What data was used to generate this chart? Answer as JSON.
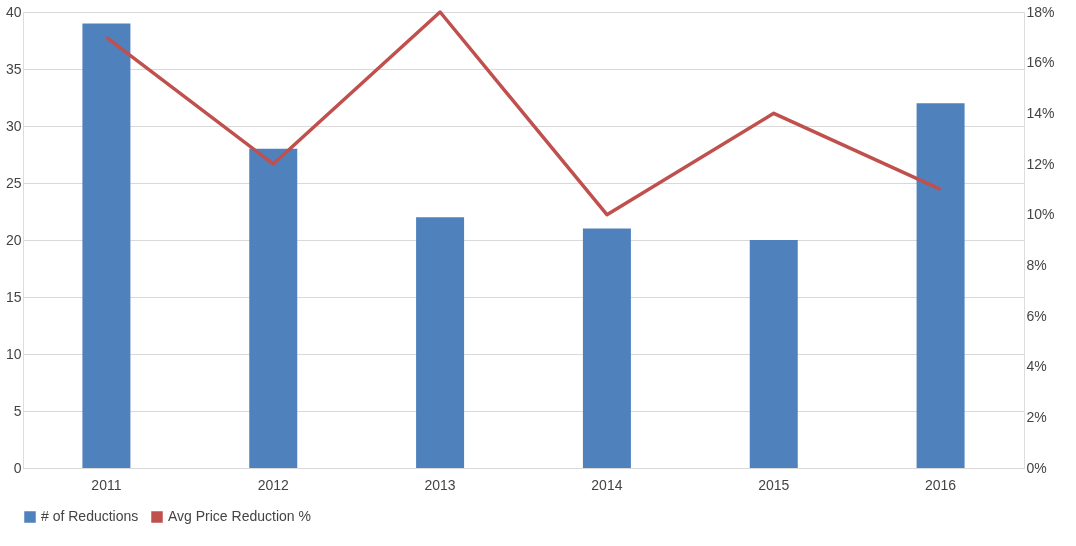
{
  "chart_data": {
    "type": "bar",
    "categories": [
      "2011",
      "2012",
      "2013",
      "2014",
      "2015",
      "2016"
    ],
    "series": [
      {
        "name": "# of Reductions",
        "color": "#4f81bd",
        "values": [
          39,
          28,
          22,
          21,
          20,
          32
        ]
      },
      {
        "name": "Avg Price Reduction %",
        "type": "line",
        "axis": "y2",
        "color": "#c0504d",
        "values": [
          17,
          12,
          18,
          10,
          14,
          11
        ]
      }
    ],
    "ylim": [
      0,
      40
    ],
    "yticks": [
      0,
      5,
      10,
      15,
      20,
      25,
      30,
      35,
      40
    ],
    "y2lim": [
      0,
      18
    ],
    "y2ticks": [
      {
        "value": 0,
        "label": "0%"
      },
      {
        "value": 2,
        "label": "2%"
      },
      {
        "value": 4,
        "label": "4%"
      },
      {
        "value": 6,
        "label": "6%"
      },
      {
        "value": 8,
        "label": "8%"
      },
      {
        "value": 10,
        "label": "10%"
      },
      {
        "value": 12,
        "label": "12%"
      },
      {
        "value": 14,
        "label": "14%"
      },
      {
        "value": 16,
        "label": "16%"
      },
      {
        "value": 18,
        "label": "18%"
      }
    ],
    "grid": "y",
    "legend": "bottom"
  }
}
